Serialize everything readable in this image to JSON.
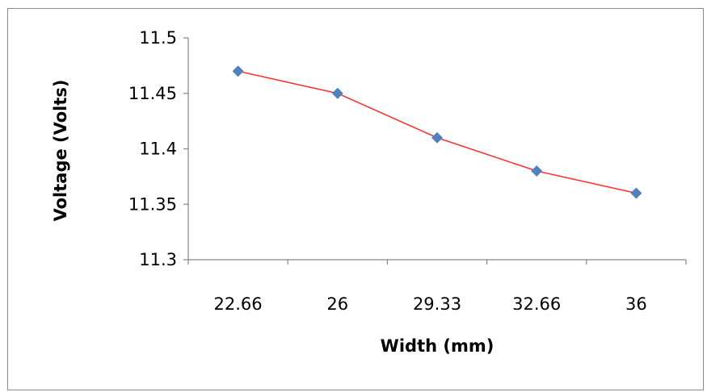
{
  "chart_data": {
    "type": "line",
    "title": "",
    "xlabel": "Width (mm)",
    "ylabel": "Voltage (Volts)",
    "x_categories": [
      "22.66",
      "26",
      "29.33",
      "32.66",
      "36"
    ],
    "y_ticks": [
      "11.3",
      "11.35",
      "11.4",
      "11.45",
      "11.5"
    ],
    "ylim": [
      11.3,
      11.5
    ],
    "grid": false,
    "legend": "none",
    "series": [
      {
        "values": [
          11.47,
          11.45,
          11.41,
          11.38,
          11.36
        ],
        "line_color": "#ff3333",
        "marker": "diamond",
        "marker_color": "#4f81bd"
      }
    ]
  }
}
